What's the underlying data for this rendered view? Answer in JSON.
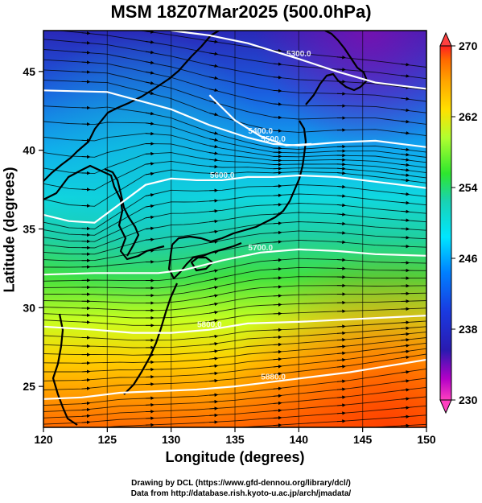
{
  "title": "MSM 18Z07Mar2025 (500.0hPa)",
  "xlabel": "Longitude (degrees)",
  "ylabel": "Latitude  (degrees)",
  "credit_line1": "Drawing by DCL (https://www.gfd-dennou.org/library/dcl/)",
  "credit_line2": "Data from http://database.rish.kyoto-u.ac.jp/arch/jmadata/",
  "map": {
    "lon_range": [
      120,
      150
    ],
    "lat_range": [
      22.4,
      47.6
    ],
    "x_ticks": [
      120,
      125,
      130,
      135,
      140,
      145,
      150
    ],
    "y_ticks": [
      25,
      30,
      35,
      40,
      45
    ],
    "variable": "temperature (K) shaded, geopotential height contours, wind streamlines",
    "contours": [
      {
        "label": "5500.0",
        "points": [
          [
            120,
            43.8
          ],
          [
            125,
            43.7
          ],
          [
            130,
            42.6
          ],
          [
            133,
            41.6
          ],
          [
            136,
            40.8
          ],
          [
            138,
            40.4
          ],
          [
            140,
            40.3
          ],
          [
            143,
            40.5
          ],
          [
            146,
            40.6
          ],
          [
            150,
            40.2
          ]
        ]
      },
      {
        "label": "5600.0",
        "points": [
          [
            120,
            35.9
          ],
          [
            122,
            35.5
          ],
          [
            124,
            35.4
          ],
          [
            126,
            36.6
          ],
          [
            128,
            37.8
          ],
          [
            130,
            38.2
          ],
          [
            132,
            38.1
          ],
          [
            134,
            38.1
          ],
          [
            136,
            38.3
          ],
          [
            138,
            38.3
          ],
          [
            140,
            38.4
          ],
          [
            143,
            38.3
          ],
          [
            146,
            38.0
          ],
          [
            150,
            37.6
          ]
        ]
      },
      {
        "label": "5700.0",
        "points": [
          [
            120,
            32.1
          ],
          [
            124,
            32.2
          ],
          [
            127,
            32.2
          ],
          [
            129,
            32.2
          ],
          [
            131,
            32.4
          ],
          [
            134,
            33.0
          ],
          [
            137,
            33.5
          ],
          [
            140,
            33.7
          ],
          [
            143,
            33.6
          ],
          [
            146,
            33.4
          ],
          [
            150,
            33.3
          ]
        ]
      },
      {
        "label": "5800.0",
        "points": [
          [
            120,
            28.8
          ],
          [
            124,
            28.6
          ],
          [
            127,
            28.4
          ],
          [
            130,
            28.4
          ],
          [
            133,
            28.6
          ],
          [
            136,
            29.0
          ],
          [
            140,
            29.1
          ],
          [
            145,
            29.3
          ],
          [
            150,
            29.5
          ]
        ]
      },
      {
        "label": "5880.0",
        "points": [
          [
            120,
            24.2
          ],
          [
            123,
            24.3
          ],
          [
            126,
            24.6
          ],
          [
            129,
            24.7
          ],
          [
            132,
            24.8
          ],
          [
            135,
            25.0
          ],
          [
            138,
            25.3
          ],
          [
            141,
            25.6
          ],
          [
            144,
            25.9
          ],
          [
            147,
            26.3
          ],
          [
            150,
            26.7
          ]
        ]
      },
      {
        "label": "5300.0",
        "points": [
          [
            130,
            47.6
          ],
          [
            133,
            47.3
          ],
          [
            136,
            46.8
          ],
          [
            138,
            46.3
          ],
          [
            140,
            45.8
          ],
          [
            143,
            45.0
          ],
          [
            146,
            44.3
          ],
          [
            150,
            43.9
          ]
        ]
      },
      {
        "label": "5400.0",
        "points": [
          [
            133,
            43.5
          ],
          [
            135,
            41.9
          ],
          [
            137,
            40.9
          ],
          [
            139,
            40.3
          ],
          [
            141,
            40.4
          ]
        ]
      }
    ]
  },
  "colorbar": {
    "min": 230,
    "max": 270,
    "tick_labels": [
      "270",
      "262",
      "254",
      "246",
      "238",
      "230"
    ],
    "colors": [
      "#ff2020",
      "#ff6a00",
      "#ffa500",
      "#ffe000",
      "#b0ff30",
      "#2ee62e",
      "#19d2b4",
      "#00e6ff",
      "#0080ff",
      "#1a1acc",
      "#b400c8",
      "#ff40c0"
    ]
  }
}
